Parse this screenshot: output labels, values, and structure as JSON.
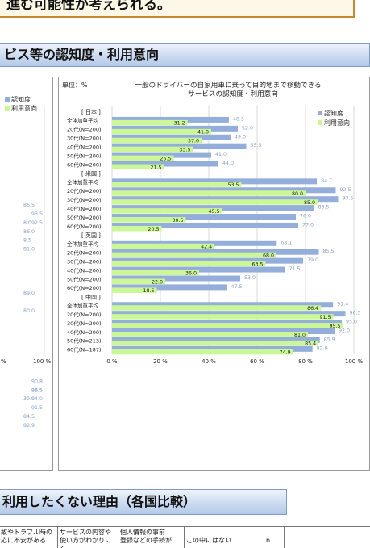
{
  "top_box": {
    "text": "進む可能性が考えられる。"
  },
  "section_header": {
    "text": "ビス等の認知度・利用意向"
  },
  "section2_header": {
    "text": "利用したくない理由（各国比較）"
  },
  "colors": {
    "awareness": "#94aedb",
    "intention": "#ccf796",
    "grid": "#c8c8c8",
    "text": "#222222"
  },
  "left_chart": {
    "legend": [
      "認知度",
      "利用意向"
    ],
    "x_ticks": [
      "%",
      "100 %"
    ],
    "partial_labels": [
      {
        "row": 20,
        "text": "86.5"
      },
      {
        "row": 21,
        "text": "93.5"
      },
      {
        "row": 22,
        "text": "8.0"
      },
      {
        "row": 22,
        "text": "92.5"
      },
      {
        "row": 23,
        "text": "86.0"
      },
      {
        "row": 24,
        "text": "8.5"
      },
      {
        "row": 25,
        "text": "81.0"
      },
      {
        "row": 30,
        "text": "89.0"
      },
      {
        "row": 32,
        "text": "80.0"
      },
      {
        "row": 40,
        "text": "90.8"
      },
      {
        "row": 41,
        "text": "91.5"
      },
      {
        "row": 41,
        "text": "96.5"
      },
      {
        "row": 42,
        "text": "39.0"
      },
      {
        "row": 42,
        "text": "94.0"
      },
      {
        "row": 43,
        "text": "91.5"
      },
      {
        "row": 44,
        "text": "84.5"
      },
      {
        "row": 45,
        "text": "82.9"
      }
    ]
  },
  "chart_data": {
    "type": "bar",
    "orientation": "horizontal",
    "unit_label": "単位：%",
    "title": "一般のドライバーの自家用車に乗って目的地まで移動できる\nサービスの認知度・利用意向",
    "legend": [
      "認知度",
      "利用意向"
    ],
    "xlim": [
      0,
      100
    ],
    "x_ticks": [
      "0 %",
      "20 %",
      "40 %",
      "60 %",
      "80 %",
      "100 %"
    ],
    "groups": [
      {
        "name": "[ 日本 ]",
        "rows": [
          {
            "label": "全体加重平均",
            "awareness": 48.3,
            "intention": 31.2
          },
          {
            "label": "20代(N=200)",
            "awareness": 52.0,
            "intention": 41.0
          },
          {
            "label": "30代(N=200)",
            "awareness": 49.0,
            "intention": 37.0
          },
          {
            "label": "40代(N=200)",
            "awareness": 55.5,
            "intention": 33.5
          },
          {
            "label": "50代(N=200)",
            "awareness": 41.0,
            "intention": 25.5
          },
          {
            "label": "60代(N=200)",
            "awareness": 44.0,
            "intention": 21.5
          }
        ]
      },
      {
        "name": "[ 米国 ]",
        "rows": [
          {
            "label": "全体加重平均",
            "awareness": 84.7,
            "intention": 53.5
          },
          {
            "label": "20代(N=200)",
            "awareness": 92.5,
            "intention": 80.0
          },
          {
            "label": "30代(N=200)",
            "awareness": 93.5,
            "intention": 85.0
          },
          {
            "label": "40代(N=200)",
            "awareness": 83.5,
            "intention": 45.5
          },
          {
            "label": "50代(N=200)",
            "awareness": 76.0,
            "intention": 30.5
          },
          {
            "label": "60代(N=200)",
            "awareness": 77.0,
            "intention": 20.5
          }
        ]
      },
      {
        "name": "[ 英国 ]",
        "rows": [
          {
            "label": "全体加重平均",
            "awareness": 68.1,
            "intention": 42.4
          },
          {
            "label": "20代(N=200)",
            "awareness": 85.5,
            "intention": 68.0
          },
          {
            "label": "30代(N=200)",
            "awareness": 79.0,
            "intention": 63.5
          },
          {
            "label": "40代(N=200)",
            "awareness": 71.5,
            "intention": 36.0
          },
          {
            "label": "50代(N=200)",
            "awareness": 53.0,
            "intention": 22.0
          },
          {
            "label": "60代(N=200)",
            "awareness": 47.5,
            "intention": 18.5
          }
        ]
      },
      {
        "name": "[ 中国 ]",
        "rows": [
          {
            "label": "全体加重平均",
            "awareness": 91.4,
            "intention": 86.4
          },
          {
            "label": "20代(N=200)",
            "awareness": 96.5,
            "intention": 91.5
          },
          {
            "label": "30代(N=200)",
            "awareness": 95.0,
            "intention": 95.5
          },
          {
            "label": "40代(N=200)",
            "awareness": 92.0,
            "intention": 81.0
          },
          {
            "label": "50代(N=213)",
            "awareness": 85.9,
            "intention": 85.4
          },
          {
            "label": "60代(N=187)",
            "awareness": 82.9,
            "intention": 74.9
          }
        ]
      }
    ]
  },
  "table": {
    "cells": [
      "故やトラブル時の\n応に不安がある",
      "サービスの内容や\n使い方がわかりにく",
      "個人情報の事前\n登録などの手続が",
      "この中にはない",
      "n"
    ]
  }
}
